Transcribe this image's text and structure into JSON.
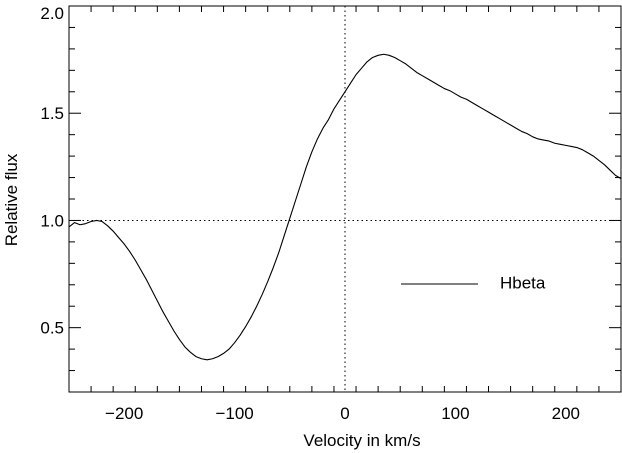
{
  "chart_data": {
    "type": "line",
    "title": "",
    "xlabel": "Velocity in km/s",
    "ylabel": "Relative flux",
    "xlim": [
      -250,
      250
    ],
    "ylim": [
      0.2,
      2.0
    ],
    "xticks": [
      -200,
      -100,
      0,
      100,
      200
    ],
    "xtick_labels": [
      "−200",
      "−100",
      "0",
      "100",
      "200"
    ],
    "yticks": [
      0.5,
      1.0,
      1.5,
      2.0
    ],
    "ytick_labels": [
      "0.5",
      "1.0",
      "1.5",
      "2.0"
    ],
    "reference_lines": {
      "x": 0,
      "y": 1.0,
      "style": "dotted"
    },
    "legend": {
      "position": "middle-right"
    },
    "line_color": "#000000",
    "series": [
      {
        "name": "Hbeta",
        "x": [
          -250,
          -245,
          -240,
          -235,
          -230,
          -225,
          -220,
          -215,
          -210,
          -205,
          -200,
          -195,
          -190,
          -185,
          -180,
          -175,
          -170,
          -165,
          -160,
          -155,
          -150,
          -145,
          -140,
          -135,
          -130,
          -125,
          -120,
          -115,
          -110,
          -105,
          -100,
          -95,
          -90,
          -85,
          -80,
          -75,
          -70,
          -65,
          -60,
          -55,
          -50,
          -45,
          -40,
          -35,
          -30,
          -25,
          -20,
          -15,
          -10,
          -5,
          0,
          5,
          10,
          15,
          20,
          25,
          30,
          35,
          40,
          45,
          50,
          55,
          60,
          65,
          70,
          75,
          80,
          85,
          90,
          95,
          100,
          105,
          110,
          115,
          120,
          125,
          130,
          135,
          140,
          145,
          150,
          155,
          160,
          165,
          170,
          175,
          180,
          185,
          190,
          195,
          200,
          205,
          210,
          215,
          220,
          225,
          230,
          235,
          240,
          245,
          250
        ],
        "y": [
          0.97,
          0.99,
          0.98,
          0.985,
          0.995,
          1.0,
          0.995,
          0.975,
          0.95,
          0.92,
          0.89,
          0.855,
          0.815,
          0.77,
          0.725,
          0.675,
          0.625,
          0.575,
          0.53,
          0.485,
          0.445,
          0.41,
          0.385,
          0.365,
          0.355,
          0.35,
          0.355,
          0.365,
          0.38,
          0.4,
          0.43,
          0.465,
          0.505,
          0.55,
          0.6,
          0.655,
          0.715,
          0.78,
          0.85,
          0.93,
          1.01,
          1.09,
          1.17,
          1.25,
          1.32,
          1.38,
          1.43,
          1.47,
          1.52,
          1.56,
          1.6,
          1.64,
          1.68,
          1.71,
          1.74,
          1.76,
          1.77,
          1.775,
          1.77,
          1.76,
          1.745,
          1.73,
          1.71,
          1.69,
          1.675,
          1.66,
          1.645,
          1.63,
          1.615,
          1.605,
          1.59,
          1.575,
          1.565,
          1.55,
          1.535,
          1.52,
          1.505,
          1.49,
          1.475,
          1.46,
          1.445,
          1.43,
          1.415,
          1.405,
          1.39,
          1.38,
          1.375,
          1.37,
          1.36,
          1.355,
          1.35,
          1.345,
          1.34,
          1.33,
          1.315,
          1.3,
          1.28,
          1.26,
          1.235,
          1.21,
          1.195
        ]
      }
    ]
  }
}
